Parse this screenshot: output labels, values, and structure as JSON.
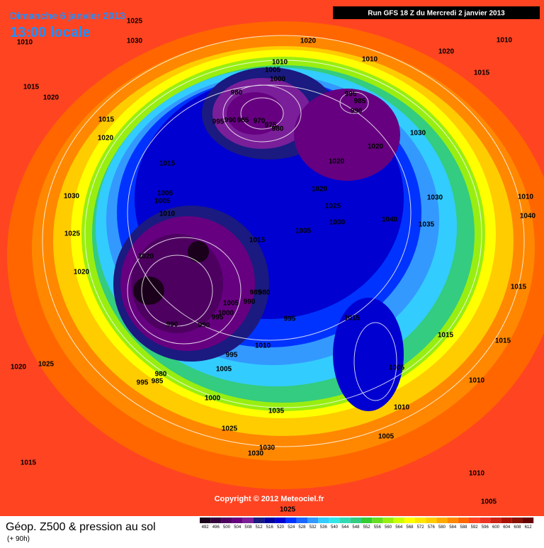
{
  "header": {
    "date": "Dimanche 6 janvier 2013",
    "time": "13:00 locale",
    "run": "Run GFS 18 Z du Mercredi 2 janvier 2013"
  },
  "copyright": "Copyright © 2012 Meteociel.fr",
  "footer": {
    "title": "Géop. Z500 & pression au sol",
    "lead": "(+ 90h)"
  },
  "isobar_labels": [
    "1025",
    "1010",
    "1030",
    "1020",
    "1010",
    "1005",
    "1000",
    "1010",
    "1020",
    "1010",
    "1015",
    "1015",
    "1020",
    "980",
    "995",
    "985",
    "990",
    "1015",
    "970",
    "975",
    "980",
    "995",
    "990",
    "985",
    "1020",
    "1030",
    "1020",
    "1015",
    "1020",
    "1005",
    "1005",
    "1010",
    "1030",
    "1020",
    "1030",
    "1010",
    "1040",
    "1025",
    "1040",
    "1035",
    "1030",
    "1025",
    "1035",
    "1015",
    "1020",
    "1020",
    "1015",
    "985",
    "980",
    "990",
    "1005",
    "1000",
    "995",
    "990",
    "990",
    "995",
    "1015",
    "1010",
    "1015",
    "1015",
    "995",
    "1005",
    "1005",
    "1025",
    "1020",
    "980",
    "995",
    "985",
    "1010",
    "1000",
    "1035",
    "1010",
    "1025",
    "1030",
    "1030",
    "1005",
    "1015",
    "1010",
    "1005",
    "1025"
  ],
  "legend": {
    "values": [
      492,
      496,
      500,
      504,
      508,
      512,
      516,
      520,
      524,
      528,
      532,
      536,
      540,
      544,
      548,
      552,
      556,
      560,
      564,
      568,
      572,
      576,
      580,
      584,
      588,
      592,
      596,
      600,
      604,
      608,
      612
    ],
    "colors": [
      "#1a001a",
      "#33003d",
      "#4d0060",
      "#660080",
      "#7a1f99",
      "#1a1a80",
      "#0000a0",
      "#0000d0",
      "#0033ff",
      "#1a66ff",
      "#3399ff",
      "#33ccff",
      "#33e6e6",
      "#33d9b3",
      "#33cc80",
      "#33cc33",
      "#66dd22",
      "#99ee11",
      "#ccff00",
      "#ffff00",
      "#ffe600",
      "#ffcc00",
      "#ffaa00",
      "#ff8800",
      "#ff6600",
      "#ff4422",
      "#ee3322",
      "#cc2211",
      "#aa1100",
      "#881100",
      "#660000"
    ]
  }
}
